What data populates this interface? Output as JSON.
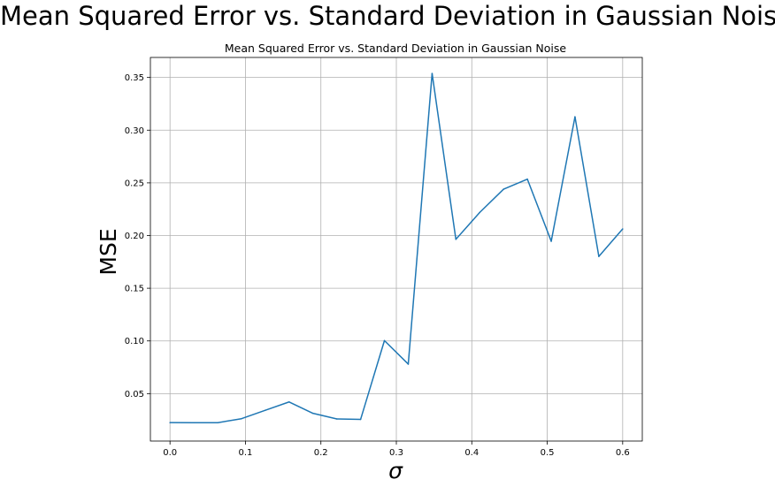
{
  "figure": {
    "suptitle": "Mean Squared Error vs. Standard Deviation in Gaussian Noise"
  },
  "chart_data": {
    "type": "line",
    "title": "Mean Squared Error vs. Standard Deviation in Gaussian Noise",
    "xlabel": "σ",
    "ylabel": "MSE",
    "xlim": [
      -0.026,
      0.626
    ],
    "ylim": [
      0.005,
      0.369
    ],
    "xticks": [
      0.0,
      0.1,
      0.2,
      0.3,
      0.4,
      0.5,
      0.6
    ],
    "xtick_labels": [
      "0.0",
      "0.1",
      "0.2",
      "0.3",
      "0.4",
      "0.5",
      "0.6"
    ],
    "yticks": [
      0.05,
      0.1,
      0.15,
      0.2,
      0.25,
      0.3,
      0.35
    ],
    "ytick_labels": [
      "0.05",
      "0.10",
      "0.15",
      "0.20",
      "0.25",
      "0.30",
      "0.35"
    ],
    "grid": true,
    "line_color": "#1f77b4",
    "series": [
      {
        "x": [
          0.0,
          0.0316,
          0.0632,
          0.0947,
          0.1263,
          0.1579,
          0.1895,
          0.2211,
          0.2526,
          0.2842,
          0.3158,
          0.3474,
          0.3789,
          0.4105,
          0.4421,
          0.4737,
          0.5053,
          0.5368,
          0.5684,
          0.6
        ],
        "y": [
          0.0225,
          0.0224,
          0.0224,
          0.0262,
          0.0342,
          0.0421,
          0.0313,
          0.026,
          0.0255,
          0.1003,
          0.078,
          0.3538,
          0.1964,
          0.2219,
          0.244,
          0.2535,
          0.1946,
          0.3127,
          0.1802,
          0.2063
        ]
      }
    ]
  }
}
